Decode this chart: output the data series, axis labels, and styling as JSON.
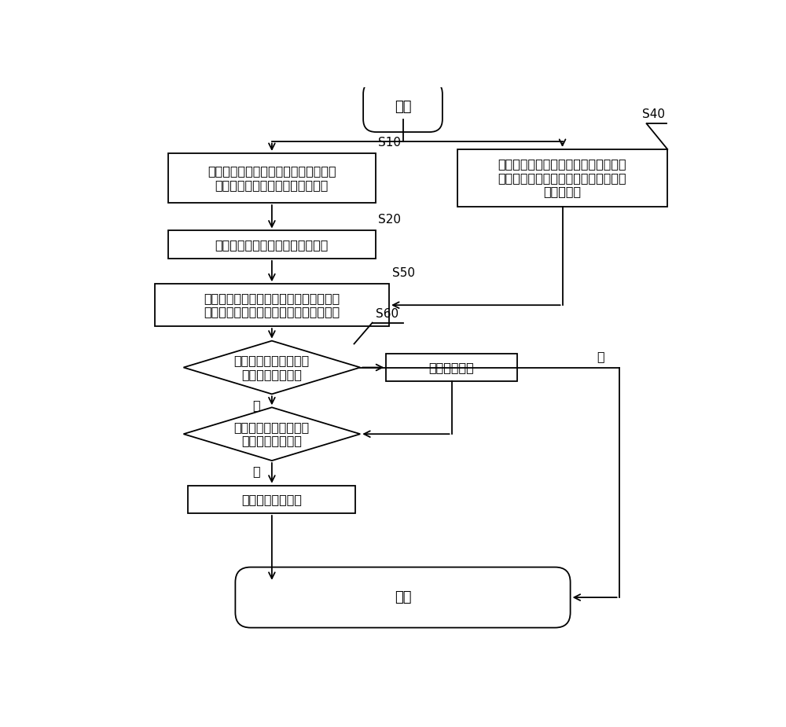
{
  "background_color": "#ffffff",
  "line_color": "#000000",
  "text_color": "#000000",
  "lw": 1.3,
  "start_label": "开始",
  "end_label": "结束",
  "s10_label": "获取风机叶片整体或特定区域的图像信\n息，所述图像信息包含有红色标识",
  "s20_label": "读取图像信息中红色标识的特征值",
  "s40_label": "模拟风电机组的在低温状态下的运行场\n景，获取不同结冰状态下，红色标识的\n标准特征值",
  "s50_label": "对比当前红色标识的特征值与红色标识的\n标准特征值，判断当前风机叶片结冰状态",
  "s60_label": "当前风机叶片结冰状态\n是否大于预警阈值",
  "warning_label": "输出预警信号",
  "s70_label": "当前风机叶片结冰状态\n是否大于停机阈值",
  "stop_label": "输出停机控制信号",
  "yes_label": "是",
  "no_label": "否",
  "tag_s10": "S10",
  "tag_s20": "S20",
  "tag_s40": "S40",
  "tag_s50": "S50",
  "tag_s60": "S60",
  "font_size_main": 11.5,
  "font_size_tag": 11,
  "font_size_terminal": 13
}
